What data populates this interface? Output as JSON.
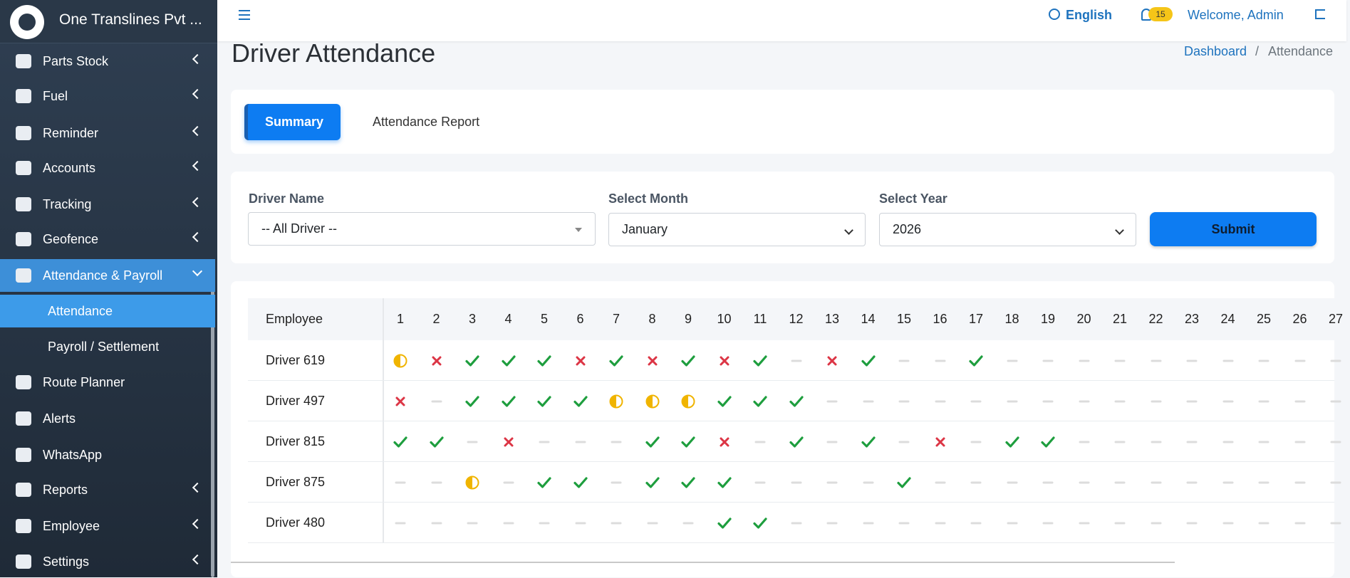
{
  "sidebar": {
    "brand": "One Translines Pvt ...",
    "menu": [
      "Parts Stock",
      "Fuel",
      "Reminder",
      "Accounts",
      "Tracking",
      "Geofence",
      "Attendance & Payroll",
      "Attendance",
      "Payroll / Settlement",
      "Route Planner",
      "Alerts",
      "WhatsApp",
      "Reports",
      "Employee",
      "Settings"
    ]
  },
  "header": {
    "language": "English",
    "notifications": 15,
    "welcome": "Welcome, Admin"
  },
  "page": {
    "title": "Driver Attendance",
    "breadcrumb": [
      "Dashboard",
      "Attendance"
    ]
  },
  "tabs": [
    "Summary",
    "Attendance Report"
  ],
  "filters": {
    "driver_label": "Driver Name",
    "driver_value": "-- All Driver --",
    "month_label": "Select Month",
    "month_value": "January",
    "year_label": "Select Year",
    "year_value": "2026",
    "submit": "Submit"
  },
  "table": {
    "header": "Employee",
    "days": [
      1,
      2,
      3,
      4,
      5,
      6,
      7,
      8,
      9,
      10,
      11,
      12,
      13,
      14,
      15,
      16,
      17,
      18,
      19,
      20,
      21,
      22,
      23,
      24,
      25,
      26,
      27
    ],
    "rows": [
      {
        "name": "Driver 619",
        "status": [
          "half",
          "absent",
          "present",
          "present",
          "present",
          "absent",
          "present",
          "absent",
          "present",
          "absent",
          "present",
          "none",
          "absent",
          "present",
          "none",
          "none",
          "present",
          "none",
          "none",
          "none",
          "none",
          "none",
          "none",
          "none",
          "none",
          "none",
          "none"
        ]
      },
      {
        "name": "Driver 497",
        "status": [
          "absent",
          "none",
          "present",
          "present",
          "present",
          "present",
          "half",
          "half",
          "half",
          "present",
          "present",
          "present",
          "none",
          "none",
          "none",
          "none",
          "none",
          "none",
          "none",
          "none",
          "none",
          "none",
          "none",
          "none",
          "none",
          "none",
          "none"
        ]
      },
      {
        "name": "Driver 815",
        "status": [
          "present",
          "present",
          "none",
          "absent",
          "none",
          "none",
          "none",
          "present",
          "present",
          "absent",
          "none",
          "present",
          "none",
          "present",
          "none",
          "absent",
          "none",
          "present",
          "present",
          "none",
          "none",
          "none",
          "none",
          "none",
          "none",
          "none",
          "none"
        ]
      },
      {
        "name": "Driver 875",
        "status": [
          "none",
          "none",
          "half",
          "none",
          "present",
          "present",
          "none",
          "present",
          "present",
          "present",
          "none",
          "none",
          "none",
          "none",
          "present",
          "none",
          "none",
          "none",
          "none",
          "none",
          "none",
          "none",
          "none",
          "none",
          "none",
          "none",
          "none"
        ]
      },
      {
        "name": "Driver 480",
        "status": [
          "none",
          "none",
          "none",
          "none",
          "none",
          "none",
          "none",
          "none",
          "none",
          "present",
          "present",
          "none",
          "none",
          "none",
          "none",
          "none",
          "none",
          "none",
          "none",
          "none",
          "none",
          "none",
          "none",
          "none",
          "none",
          "none",
          "none"
        ]
      }
    ]
  }
}
